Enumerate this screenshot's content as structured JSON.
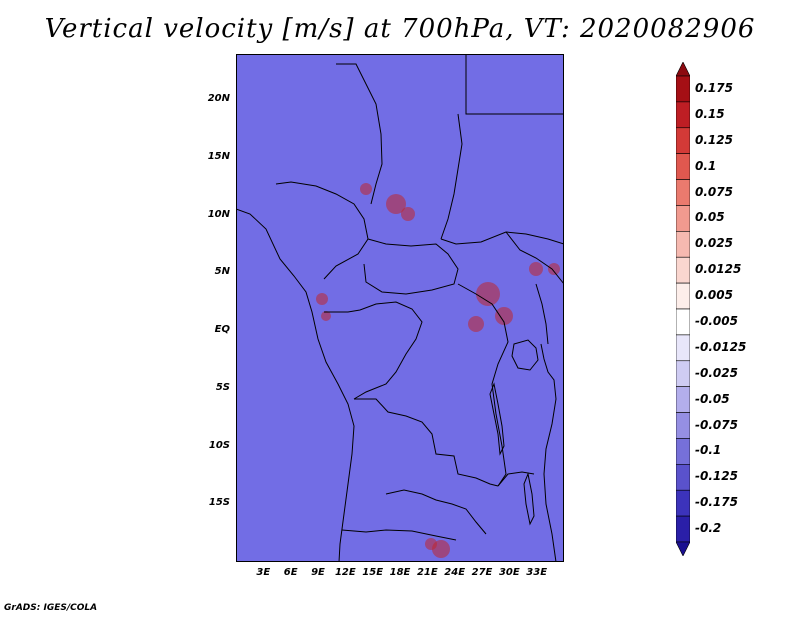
{
  "title": "Vertical velocity [m/s] at 700hPa, VT: 2020082906",
  "map": {
    "lon_range": [
      0,
      36
    ],
    "lat_range": [
      -20,
      24
    ],
    "lat_ticks": [
      {
        "value": 20,
        "label": "20N"
      },
      {
        "value": 15,
        "label": "15N"
      },
      {
        "value": 10,
        "label": "10N"
      },
      {
        "value": 5,
        "label": "5N"
      },
      {
        "value": 0,
        "label": "EQ"
      },
      {
        "value": -5,
        "label": "5S"
      },
      {
        "value": -10,
        "label": "10S"
      },
      {
        "value": -15,
        "label": "15S"
      }
    ],
    "lon_ticks": [
      {
        "value": 3,
        "label": "3E"
      },
      {
        "value": 6,
        "label": "6E"
      },
      {
        "value": 9,
        "label": "9E"
      },
      {
        "value": 12,
        "label": "12E"
      },
      {
        "value": 15,
        "label": "15E"
      },
      {
        "value": 18,
        "label": "18E"
      },
      {
        "value": 21,
        "label": "21E"
      },
      {
        "value": 24,
        "label": "24E"
      },
      {
        "value": 27,
        "label": "27E"
      },
      {
        "value": 30,
        "label": "30E"
      },
      {
        "value": 33,
        "label": "33E"
      }
    ]
  },
  "colorbar": {
    "levels": [
      {
        "label": "0.175",
        "color": "#a50f15"
      },
      {
        "label": "0.15",
        "color": "#be1e24"
      },
      {
        "label": "0.125",
        "color": "#d33a37"
      },
      {
        "label": "0.1",
        "color": "#e0584f"
      },
      {
        "label": "0.075",
        "color": "#ea7a6e"
      },
      {
        "label": "0.05",
        "color": "#f19a8f"
      },
      {
        "label": "0.025",
        "color": "#f6b9b0"
      },
      {
        "label": "0.0125",
        "color": "#fad6cf"
      },
      {
        "label": "0.005",
        "color": "#fdeeea"
      },
      {
        "label": "-0.005",
        "color": "#ffffff"
      },
      {
        "label": "-0.0125",
        "color": "#e8e6fa"
      },
      {
        "label": "-0.025",
        "color": "#cfccf3"
      },
      {
        "label": "-0.05",
        "color": "#b3aeec"
      },
      {
        "label": "-0.075",
        "color": "#958fe3"
      },
      {
        "label": "-0.1",
        "color": "#7670d9"
      },
      {
        "label": "-0.125",
        "color": "#5a52cc"
      },
      {
        "label": "-0.175",
        "color": "#3c33bb"
      },
      {
        "label": "-0.2",
        "color": "#2a1fa8"
      }
    ],
    "over_color": "#8c0a10",
    "under_color": "#1a1090"
  },
  "credit": "GrADS: IGES/COLA"
}
